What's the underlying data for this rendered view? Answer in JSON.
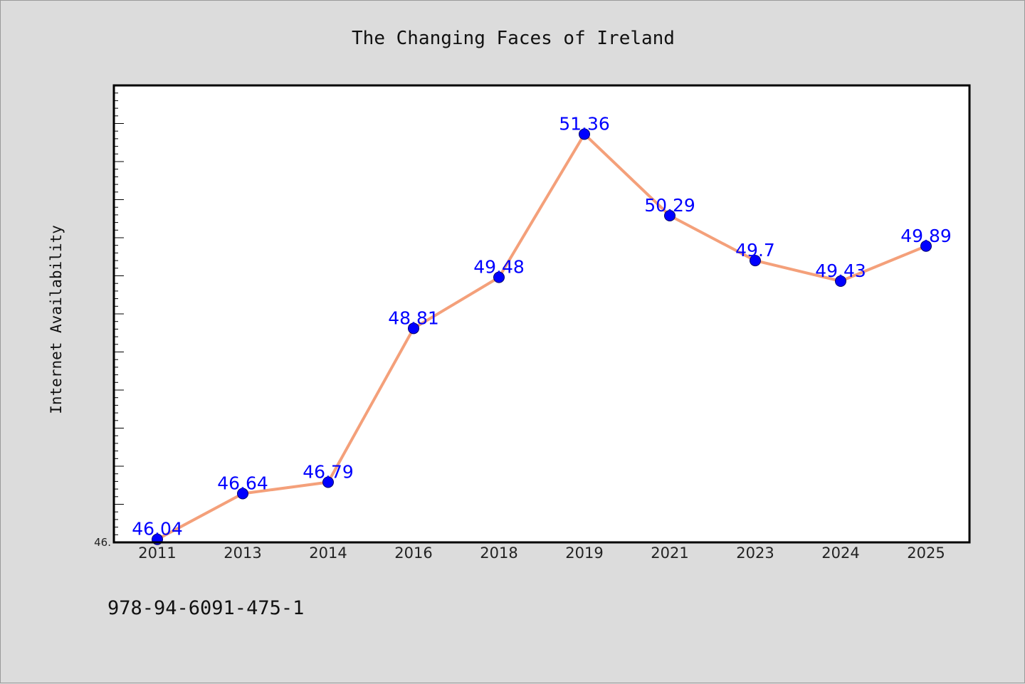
{
  "chart_data": {
    "type": "line",
    "title": "The Changing Faces of Ireland",
    "ylabel": "Internet Availability",
    "categories": [
      "2011",
      "2013",
      "2014",
      "2016",
      "2018",
      "2019",
      "2021",
      "2023",
      "2024",
      "2025"
    ],
    "series": [
      {
        "values": [
          46.04,
          46.64,
          46.79,
          48.81,
          49.48,
          51.36,
          50.29,
          49.7,
          49.43,
          49.89
        ],
        "labels": [
          "46.04",
          "46.64",
          "46.79",
          "48.81",
          "49.48",
          "51.36",
          "50.29",
          "49.7",
          "49.43",
          "49.89"
        ]
      }
    ],
    "y_tick_label": "46.",
    "ylim": [
      46.0,
      52.0
    ],
    "grid": false,
    "colors": {
      "line": "#f4a07a",
      "marker": "#0000ff",
      "data_label": "#0000ff",
      "background": "#dcdcdc",
      "plot_background": "#ffffff"
    }
  },
  "footer": {
    "isbn": "978-94-6091-475-1"
  }
}
